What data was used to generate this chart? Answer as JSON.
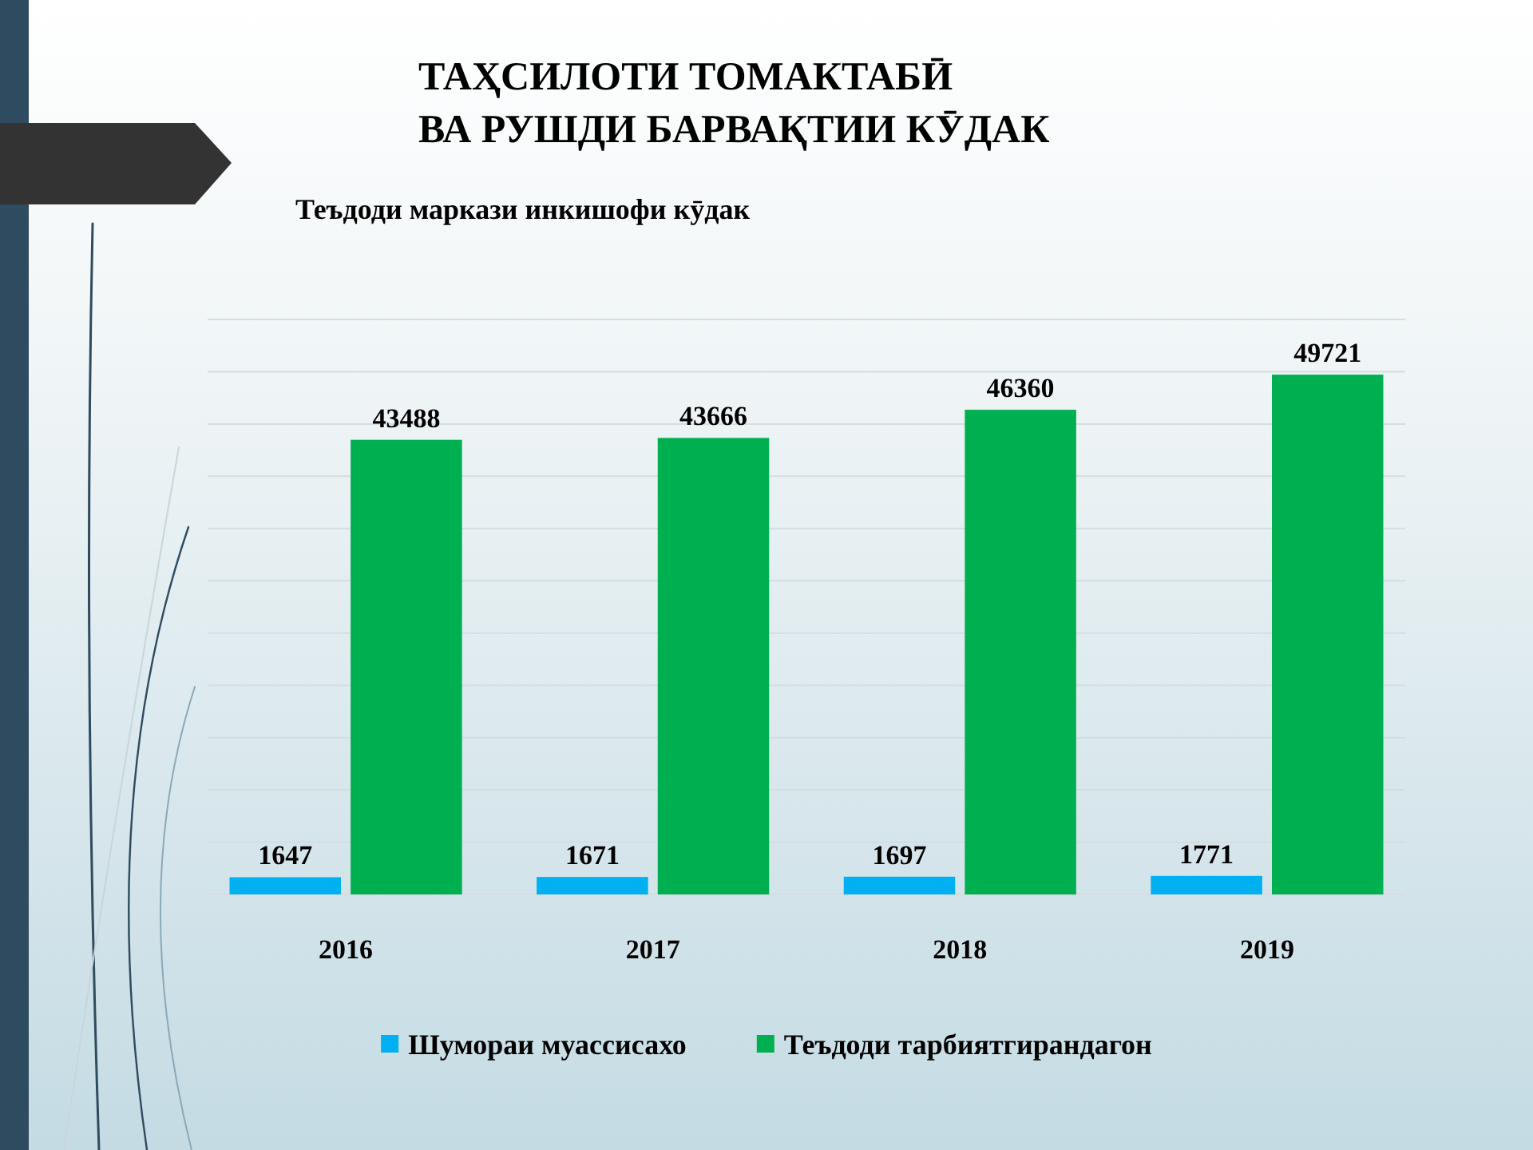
{
  "chart_data": {
    "type": "bar",
    "title": "ТАҲСИЛОТИ ТОМАКТАБӢ\nВА РУШДИ БАРВАҚТИИ КӮДАК",
    "subtitle": "Теъдоди маркази инкишофи кӯдак",
    "categories": [
      "2016",
      "2017",
      "2018",
      "2019"
    ],
    "series": [
      {
        "name": "Шумораи муассисахо",
        "color": "#00b0f0",
        "values": [
          1647,
          1671,
          1697,
          1771
        ]
      },
      {
        "name": "Теъдоди тарбиятгирандагон",
        "color": "#00b050",
        "values": [
          43488,
          43666,
          46360,
          49721
        ]
      }
    ],
    "ylim": [
      0,
      55000
    ],
    "yticks": [
      {
        "value": 0,
        "label": null
      },
      {
        "value": 5000,
        "label": null
      },
      {
        "value": 10000,
        "label": null
      },
      {
        "value": 15000,
        "label": null
      },
      {
        "value": 20000,
        "label": null
      },
      {
        "value": 25000,
        "label": null
      },
      {
        "value": 30000,
        "label": null
      },
      {
        "value": 35000,
        "label": null
      },
      {
        "value": 40000,
        "label": null
      },
      {
        "value": 45000,
        "label": null
      },
      {
        "value": 50000,
        "label": null
      },
      {
        "value": 55000,
        "label": null
      }
    ],
    "grid": "y",
    "tick_labels": "x",
    "data_labels": true,
    "legend": "bottom"
  }
}
